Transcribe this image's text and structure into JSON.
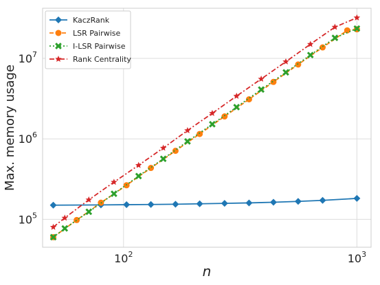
{
  "chart_data": {
    "type": "line",
    "xscale": "log",
    "yscale": "log",
    "xlim": [
      45,
      1150
    ],
    "ylim": [
      45000,
      42000000
    ],
    "xlabel": "n",
    "ylabel": "Max. memory usage",
    "grid": true,
    "legend_position": "top-left",
    "x_ticks": [
      {
        "value": 100,
        "base": "10",
        "exp": "2"
      },
      {
        "value": 1000,
        "base": "10",
        "exp": "3"
      }
    ],
    "y_ticks": [
      {
        "value": 100000,
        "base": "10",
        "exp": "5"
      },
      {
        "value": 1000000,
        "base": "10",
        "exp": "6"
      },
      {
        "value": 10000000,
        "base": "10",
        "exp": "7"
      }
    ],
    "x": [
      50,
      56,
      63,
      71,
      80,
      91,
      103,
      116,
      131,
      148,
      167,
      188,
      212,
      240,
      271,
      305,
      345,
      389,
      439,
      496,
      560,
      632,
      713,
      805,
      909,
      1000
    ],
    "series": [
      {
        "name": "KaczRank",
        "color": "#1f77b4",
        "marker": "diamond",
        "dash": "solid",
        "x": [
          50,
          80,
          103,
          131,
          167,
          212,
          271,
          345,
          439,
          560,
          713,
          1000
        ],
        "values": [
          150000,
          151000,
          152000,
          153000,
          154000,
          156000,
          158000,
          160000,
          163000,
          167000,
          172000,
          182000
        ]
      },
      {
        "name": "LSR Pairwise",
        "color": "#ff7f0e",
        "marker": "circle",
        "dash": "dashed",
        "x": [
          50,
          63,
          80,
          103,
          131,
          167,
          212,
          271,
          345,
          439,
          560,
          713,
          909,
          1000
        ],
        "values": [
          60000,
          98000,
          161000,
          265000,
          435000,
          710000,
          1150000,
          1900000,
          3100000,
          5100000,
          8400000,
          13700000,
          22300000,
          23000000
        ]
      },
      {
        "name": "I-LSR Pairwise",
        "color": "#2ca02c",
        "marker": "x",
        "dash": "dotted",
        "x": [
          50,
          56,
          71,
          91,
          116,
          148,
          188,
          240,
          305,
          389,
          496,
          632,
          805,
          1000
        ],
        "values": [
          60000,
          77000,
          124000,
          208000,
          345000,
          565000,
          930000,
          1520000,
          2480000,
          4100000,
          6700000,
          11000000,
          18000000,
          23500000
        ]
      },
      {
        "name": "Rank Centrality",
        "color": "#d62728",
        "marker": "star",
        "dash": "dashdot",
        "x": [
          50,
          56,
          71,
          91,
          116,
          148,
          188,
          240,
          305,
          389,
          496,
          632,
          805,
          1000
        ],
        "values": [
          80000,
          104000,
          175000,
          290000,
          470000,
          770000,
          1270000,
          2080000,
          3400000,
          5550000,
          9100000,
          15000000,
          24500000,
          32000000
        ]
      }
    ]
  }
}
